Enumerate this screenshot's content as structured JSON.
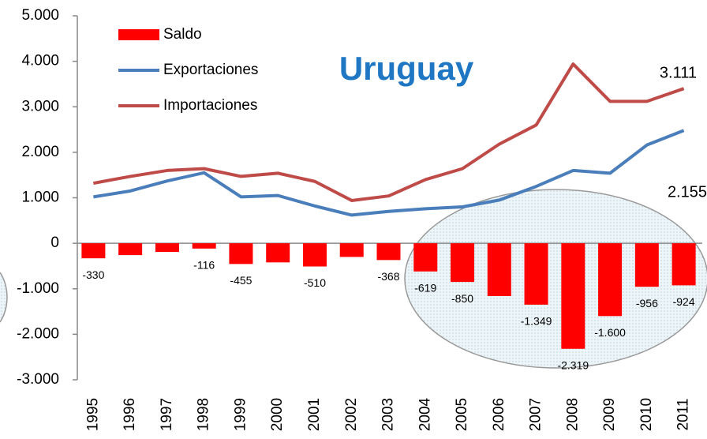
{
  "chart_data": {
    "type": "bar_line",
    "title": "Uruguay",
    "annotations": [
      "3.111",
      "2.155"
    ],
    "categories": [
      "1995",
      "1996",
      "1997",
      "1998",
      "1999",
      "2000",
      "2001",
      "2002",
      "2003",
      "2004",
      "2005",
      "2006",
      "2007",
      "2008",
      "2009",
      "2010",
      "2011"
    ],
    "series": [
      {
        "name": "Saldo",
        "type": "bar",
        "color": "#ff0000",
        "values": [
          -330,
          -260,
          -190,
          -116,
          -455,
          -420,
          -510,
          -300,
          -368,
          -619,
          -850,
          -1160,
          -1349,
          -2319,
          -1600,
          -956,
          -924
        ],
        "value_labels": [
          "-330",
          null,
          null,
          "-116",
          "-455",
          null,
          "-510",
          null,
          "-368",
          "-619",
          "-850",
          null,
          "-1.349",
          "-2.319",
          "-1.600",
          "-956",
          "-924"
        ]
      },
      {
        "name": "Exportaciones",
        "type": "line",
        "color": "#4a7ebb",
        "values": [
          1020,
          1150,
          1370,
          1550,
          1020,
          1050,
          820,
          620,
          700,
          760,
          800,
          950,
          1250,
          1600,
          1540,
          2160,
          2480
        ]
      },
      {
        "name": "Importaciones",
        "type": "line",
        "color": "#be4b48",
        "values": [
          1320,
          1470,
          1600,
          1640,
          1470,
          1540,
          1360,
          940,
          1040,
          1400,
          1640,
          2180,
          2600,
          3940,
          3120,
          3120,
          3400
        ]
      }
    ],
    "ylim": [
      -3000,
      5000
    ],
    "yticks": [
      {
        "value": 5000,
        "label": "5.000"
      },
      {
        "value": 4000,
        "label": "4.000"
      },
      {
        "value": 3000,
        "label": "3.000"
      },
      {
        "value": 2000,
        "label": "2.000"
      },
      {
        "value": 1000,
        "label": "1.000"
      },
      0,
      {
        "value": -1000,
        "label": "-1.000"
      },
      {
        "value": -2000,
        "label": "-2.000"
      },
      {
        "value": -3000,
        "label": "-3.000"
      }
    ]
  }
}
